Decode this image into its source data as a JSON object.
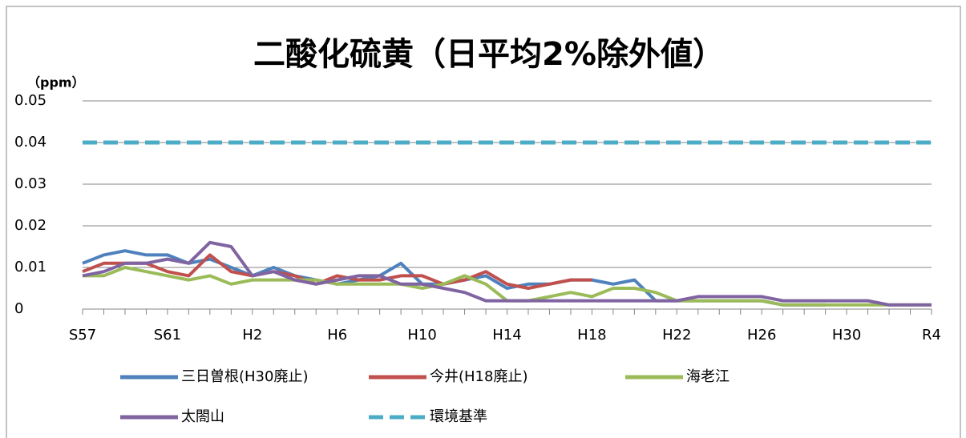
{
  "chart_data": {
    "type": "line",
    "title": "二酸化硫黄（日平均2%除外値）",
    "y_axis_label": "（ppm）",
    "categories": [
      "S57",
      null,
      null,
      null,
      "S61",
      null,
      null,
      null,
      "H2",
      null,
      null,
      null,
      "H6",
      null,
      null,
      null,
      "H10",
      null,
      null,
      null,
      "H14",
      null,
      null,
      null,
      "H18",
      null,
      null,
      null,
      "H22",
      null,
      null,
      null,
      "H26",
      null,
      null,
      null,
      "H30",
      null,
      null,
      null,
      "R4"
    ],
    "ylim": [
      0,
      0.05
    ],
    "yticks": [
      0,
      0.01,
      0.02,
      0.03,
      0.04,
      0.05
    ],
    "grid": true,
    "legend": "bottom",
    "series": [
      {
        "name": "三日曽根(H30廃止)",
        "color": "#4f81bd",
        "values": [
          0.011,
          0.013,
          0.014,
          0.013,
          0.013,
          0.011,
          0.012,
          0.01,
          0.008,
          0.01,
          0.008,
          0.007,
          0.006,
          0.007,
          0.008,
          0.011,
          0.006,
          0.006,
          0.007,
          0.008,
          0.005,
          0.006,
          0.006,
          0.007,
          0.007,
          0.006,
          0.007,
          0.002,
          0.002,
          0.002,
          0.002,
          0.002,
          0.002,
          0.001,
          0.001,
          0.001,
          null,
          null,
          null,
          null,
          null
        ]
      },
      {
        "name": "今井(H18廃止)",
        "color": "#c0504d",
        "values": [
          0.009,
          0.011,
          0.011,
          0.011,
          0.009,
          0.008,
          0.013,
          0.009,
          0.008,
          0.009,
          0.008,
          0.006,
          0.008,
          0.007,
          0.007,
          0.008,
          0.008,
          0.006,
          0.007,
          0.009,
          0.006,
          0.005,
          0.006,
          0.007,
          0.007,
          null,
          null,
          null,
          null,
          null,
          null,
          null,
          null,
          null,
          null,
          null,
          null,
          null,
          null,
          null,
          null
        ]
      },
      {
        "name": "海老江",
        "color": "#9bbb59",
        "values": [
          0.008,
          0.008,
          0.01,
          0.009,
          0.008,
          0.007,
          0.008,
          0.006,
          0.007,
          0.007,
          0.007,
          0.007,
          0.006,
          0.006,
          0.006,
          0.006,
          0.005,
          0.006,
          0.008,
          0.006,
          0.002,
          0.002,
          0.003,
          0.004,
          0.003,
          0.005,
          0.005,
          0.004,
          0.002,
          0.002,
          0.002,
          0.002,
          0.002,
          0.001,
          0.001,
          0.001,
          0.001,
          0.001,
          0.001,
          0.001,
          0.001
        ]
      },
      {
        "name": "太閤山",
        "color": "#8064a2",
        "values": [
          0.008,
          0.009,
          0.011,
          0.011,
          0.012,
          0.011,
          0.016,
          0.015,
          0.008,
          0.009,
          0.007,
          0.006,
          0.007,
          0.008,
          0.008,
          0.006,
          0.006,
          0.005,
          0.004,
          0.002,
          0.002,
          0.002,
          0.002,
          0.002,
          0.002,
          0.002,
          0.002,
          0.002,
          0.002,
          0.003,
          0.003,
          0.003,
          0.003,
          0.002,
          0.002,
          0.002,
          0.002,
          0.002,
          0.001,
          0.001,
          0.001
        ]
      },
      {
        "name": "環境基準",
        "color": "#4bacc6",
        "dashed": true,
        "values": [
          0.04,
          0.04,
          0.04,
          0.04,
          0.04,
          0.04,
          0.04,
          0.04,
          0.04,
          0.04,
          0.04,
          0.04,
          0.04,
          0.04,
          0.04,
          0.04,
          0.04,
          0.04,
          0.04,
          0.04,
          0.04,
          0.04,
          0.04,
          0.04,
          0.04,
          0.04,
          0.04,
          0.04,
          0.04,
          0.04,
          0.04,
          0.04,
          0.04,
          0.04,
          0.04,
          0.04,
          0.04,
          0.04,
          0.04,
          0.04,
          0.04
        ]
      }
    ]
  }
}
